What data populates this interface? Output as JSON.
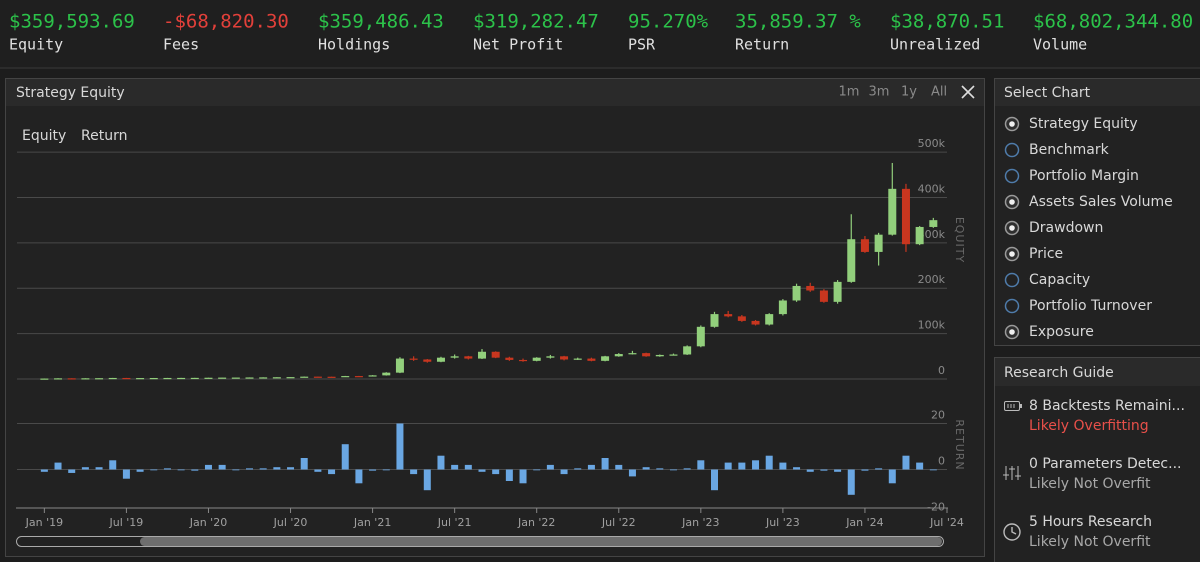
{
  "stats": [
    {
      "value": "$359,593.69",
      "label": "Equity",
      "color": "#2cc24a"
    },
    {
      "value": "-$68,820.30",
      "label": "Fees",
      "color": "#e2403a"
    },
    {
      "value": "$359,486.43",
      "label": "Holdings",
      "color": "#2cc24a"
    },
    {
      "value": "$319,282.47",
      "label": "Net Profit",
      "color": "#2cc24a"
    },
    {
      "value": "95.270%",
      "label": "PSR",
      "color": "#2cc24a"
    },
    {
      "value": "35,859.37 %",
      "label": "Return",
      "color": "#2cc24a"
    },
    {
      "value": "$38,870.51",
      "label": "Unrealized",
      "color": "#2cc24a"
    },
    {
      "value": "$68,802,344.80",
      "label": "Volume",
      "color": "#2cc24a"
    }
  ],
  "panel": {
    "title": "Strategy Equity",
    "ranges": [
      "1m",
      "3m",
      "1y",
      "All"
    ]
  },
  "chart_data": [
    {
      "type": "candlestick",
      "name": "Equity",
      "ylabel": "EQUITY",
      "up_color": "#92cf7c",
      "down_color": "#c8361f",
      "x": [
        "2019-01",
        "2019-02",
        "2019-03",
        "2019-04",
        "2019-05",
        "2019-06",
        "2019-07",
        "2019-08",
        "2019-09",
        "2019-10",
        "2019-11",
        "2019-12",
        "2020-01",
        "2020-02",
        "2020-03",
        "2020-04",
        "2020-05",
        "2020-06",
        "2020-07",
        "2020-08",
        "2020-09",
        "2020-10",
        "2020-11",
        "2020-12",
        "2021-01",
        "2021-02",
        "2021-03",
        "2021-04",
        "2021-05",
        "2021-06",
        "2021-07",
        "2021-08",
        "2021-09",
        "2021-10",
        "2021-11",
        "2021-12",
        "2022-01",
        "2022-02",
        "2022-03",
        "2022-04",
        "2022-05",
        "2022-06",
        "2022-07",
        "2022-08",
        "2022-09",
        "2022-10",
        "2022-11",
        "2022-12",
        "2023-01",
        "2023-02",
        "2023-03",
        "2023-04",
        "2023-05",
        "2023-06",
        "2023-07",
        "2023-08",
        "2023-09",
        "2023-10",
        "2023-11",
        "2023-12",
        "2024-01",
        "2024-02",
        "2024-03",
        "2024-04",
        "2024-05",
        "2024-06"
      ],
      "open": [
        0.5,
        1,
        1.5,
        1.3,
        1.6,
        1.8,
        2.3,
        2,
        2.1,
        2.2,
        2.3,
        2.4,
        2.5,
        2.8,
        3.1,
        3.2,
        3.4,
        3.6,
        3.9,
        4.2,
        5.2,
        5,
        4.7,
        6.5,
        5.8,
        8,
        14,
        45,
        43,
        38,
        47,
        50,
        45,
        60,
        47,
        42,
        40,
        47,
        50,
        43,
        45,
        40,
        50,
        55,
        57,
        50,
        53,
        54,
        72,
        115,
        143,
        138,
        128,
        120,
        143,
        173,
        205,
        195,
        170,
        214,
        308,
        280,
        318,
        419,
        297,
        335
      ],
      "high": [
        1.2,
        1.7,
        1.6,
        1.7,
        1.9,
        2.4,
        2.4,
        2.2,
        2.3,
        2.4,
        2.5,
        2.6,
        2.9,
        3.2,
        3.3,
        3.5,
        3.7,
        4,
        4.3,
        5.5,
        5.4,
        5.1,
        6.8,
        6.8,
        8.5,
        15,
        48,
        50,
        44,
        49,
        54,
        51,
        66,
        61,
        49,
        45,
        48,
        53,
        51,
        47,
        47,
        51,
        57,
        62,
        58,
        54,
        56,
        74,
        118,
        148,
        150,
        141,
        130,
        145,
        176,
        210,
        212,
        198,
        218,
        363,
        315,
        322,
        476,
        430,
        337,
        355
      ],
      "low": [
        0.4,
        0.9,
        1.2,
        1.2,
        1.5,
        1.7,
        1.9,
        1.9,
        2,
        2.1,
        2.2,
        2.3,
        2.4,
        2.7,
        3,
        3.1,
        3.3,
        3.5,
        3.8,
        4.1,
        4.8,
        4.5,
        4.5,
        5.6,
        5.6,
        7.5,
        13,
        40,
        36,
        37,
        45,
        43,
        44,
        46,
        40,
        38,
        39,
        45,
        41,
        42,
        39,
        39,
        49,
        54,
        49,
        49,
        52,
        53,
        70,
        113,
        136,
        126,
        118,
        118,
        140,
        170,
        192,
        168,
        166,
        212,
        278,
        250,
        316,
        280,
        295,
        333
      ],
      "close": [
        1,
        1.5,
        1.3,
        1.6,
        1.8,
        2.3,
        2,
        2.1,
        2.2,
        2.3,
        2.4,
        2.5,
        2.8,
        3.1,
        3.2,
        3.4,
        3.6,
        3.9,
        4.2,
        5.2,
        5,
        4.7,
        6.5,
        5.8,
        8,
        14,
        45,
        43,
        38,
        47,
        50,
        45,
        60,
        47,
        42,
        40,
        47,
        50,
        43,
        45,
        40,
        50,
        55,
        57,
        50,
        53,
        54,
        72,
        115,
        143,
        138,
        128,
        120,
        143,
        173,
        205,
        195,
        170,
        214,
        308,
        280,
        318,
        419,
        297,
        335,
        350
      ],
      "xlim": [
        "2018-11",
        "2024-07"
      ],
      "ylim": [
        0,
        520
      ],
      "yticks": [
        0,
        {
          "value": 100,
          "label": "100k"
        },
        {
          "value": 200,
          "label": "200k"
        },
        {
          "value": 300,
          "label": "300k"
        },
        {
          "value": 400,
          "label": "400k"
        },
        {
          "value": 500,
          "label": "500k"
        }
      ],
      "grid": true
    },
    {
      "type": "bar",
      "name": "Return",
      "ylabel": "RETURN",
      "color": "#6aa7e3",
      "x": [
        "2019-01",
        "2019-02",
        "2019-03",
        "2019-04",
        "2019-05",
        "2019-06",
        "2019-07",
        "2019-08",
        "2019-09",
        "2019-10",
        "2019-11",
        "2019-12",
        "2020-01",
        "2020-02",
        "2020-03",
        "2020-04",
        "2020-05",
        "2020-06",
        "2020-07",
        "2020-08",
        "2020-09",
        "2020-10",
        "2020-11",
        "2020-12",
        "2021-01",
        "2021-02",
        "2021-03",
        "2021-04",
        "2021-05",
        "2021-06",
        "2021-07",
        "2021-08",
        "2021-09",
        "2021-10",
        "2021-11",
        "2021-12",
        "2022-01",
        "2022-02",
        "2022-03",
        "2022-04",
        "2022-05",
        "2022-06",
        "2022-07",
        "2022-08",
        "2022-09",
        "2022-10",
        "2022-11",
        "2022-12",
        "2023-01",
        "2023-02",
        "2023-03",
        "2023-04",
        "2023-05",
        "2023-06",
        "2023-07",
        "2023-08",
        "2023-09",
        "2023-10",
        "2023-11",
        "2023-12",
        "2024-01",
        "2024-02",
        "2024-03",
        "2024-04",
        "2024-05",
        "2024-06"
      ],
      "values": [
        -1,
        3,
        -1.5,
        1,
        1,
        4,
        -4,
        -1,
        0,
        0.5,
        0,
        -0.5,
        2,
        2,
        0,
        0.5,
        0.5,
        1,
        1,
        5,
        -1,
        -2,
        11,
        -6,
        -0.5,
        0,
        20,
        -2,
        -9,
        6,
        2,
        2,
        -1,
        -2,
        -5,
        -6,
        0,
        2,
        -2,
        0.5,
        2,
        5,
        2,
        -3,
        1,
        0.5,
        0,
        0.5,
        4,
        -9,
        3,
        3,
        4,
        6,
        3,
        1,
        -1,
        -0.5,
        -1,
        -11,
        -0.5,
        0.5,
        -6,
        6,
        3,
        0
      ],
      "xlim": [
        "2018-11",
        "2024-07"
      ],
      "xticks": [
        {
          "value": "2019-01",
          "label": "Jan '19"
        },
        {
          "value": "2019-07",
          "label": "Jul '19"
        },
        {
          "value": "2020-01",
          "label": "Jan '20"
        },
        {
          "value": "2020-07",
          "label": "Jul '20"
        },
        {
          "value": "2021-01",
          "label": "Jan '21"
        },
        {
          "value": "2021-07",
          "label": "Jul '21"
        },
        {
          "value": "2022-01",
          "label": "Jan '22"
        },
        {
          "value": "2022-07",
          "label": "Jul '22"
        },
        {
          "value": "2023-01",
          "label": "Jan '23"
        },
        {
          "value": "2023-07",
          "label": "Jul '23"
        },
        {
          "value": "2024-01",
          "label": "Jan '24"
        },
        {
          "value": "2024-07",
          "label": "Jul '24"
        }
      ],
      "ylim": [
        -20,
        25
      ],
      "yticks": [
        -20,
        0,
        20
      ],
      "grid": true
    }
  ],
  "select_chart": {
    "title": "Select Chart",
    "options": [
      {
        "label": "Strategy Equity",
        "selected": true
      },
      {
        "label": "Benchmark",
        "selected": false
      },
      {
        "label": "Portfolio Margin",
        "selected": false
      },
      {
        "label": "Assets Sales Volume",
        "selected": true
      },
      {
        "label": "Drawdown",
        "selected": true
      },
      {
        "label": "Price",
        "selected": true
      },
      {
        "label": "Capacity",
        "selected": false
      },
      {
        "label": "Portfolio Turnover",
        "selected": false
      },
      {
        "label": "Exposure",
        "selected": true
      }
    ]
  },
  "research_guide": {
    "title": "Research Guide",
    "items": [
      {
        "text": "8 Backtests Remaini...",
        "status": "Likely Overfitting",
        "status_color": "#e8504a"
      },
      {
        "text": "0 Parameters Detec...",
        "status": "Likely Not Overfit",
        "status_color": "#a8a8a8"
      },
      {
        "text": "5 Hours Research",
        "status": "Likely Not Overfit",
        "status_color": "#a8a8a8"
      }
    ]
  }
}
